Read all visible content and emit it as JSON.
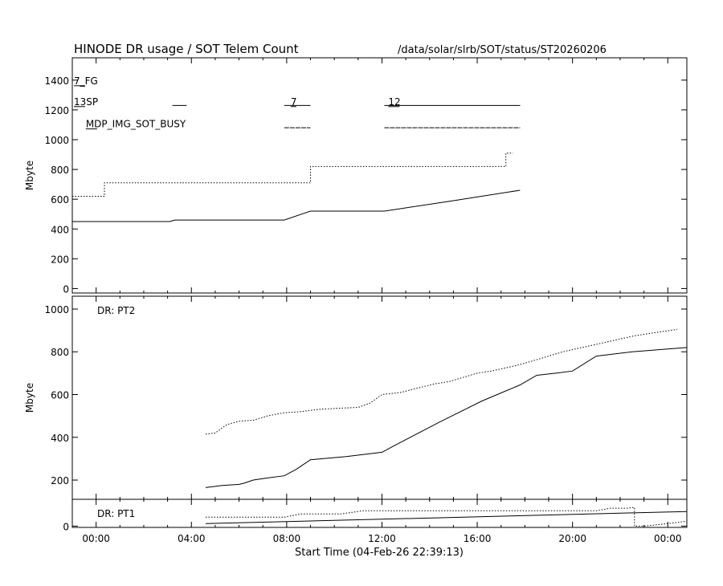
{
  "header": {
    "title": "HINODE DR usage / SOT Telem Count",
    "path": "/data/solar/slrb/SOT/status/ST20260206"
  },
  "x_axis": {
    "label": "Start Time (04-Feb-26 22:39:13)",
    "tick_labels": [
      "00:00",
      "04:00",
      "08:00",
      "12:00",
      "16:00",
      "20:00",
      "00:00"
    ],
    "tick_hours": [
      24,
      28,
      32,
      36,
      40,
      44,
      48
    ]
  },
  "chart_data": [
    {
      "type": "line",
      "panel": "top",
      "title": "",
      "xlabel": "",
      "ylabel": "Mbyte",
      "xlim": [
        23,
        48.8
      ],
      "ylim": [
        -30,
        1550
      ],
      "yticks": [
        0,
        200,
        400,
        600,
        800,
        1000,
        1200,
        1400
      ],
      "labels": [
        {
          "text": "7_FG",
          "hour": 23.0,
          "y": 1400
        },
        {
          "text": "13SP",
          "hour": 23.0,
          "y": 1260
        },
        {
          "text": "7",
          "hour": 32.1,
          "y": 1260
        },
        {
          "text": "12",
          "hour": 36.2,
          "y": 1260
        },
        {
          "text": "MDP_IMG_SOT_BUSY",
          "hour": 23.5,
          "y": 1110
        }
      ],
      "segments": [
        {
          "name": "13SP",
          "level": 1230,
          "x1": 27.2,
          "x2": 27.8
        },
        {
          "name": "7",
          "level": 1230,
          "x1": 31.9,
          "x2": 33.0
        },
        {
          "name": "12",
          "level": 1230,
          "x1": 36.1,
          "x2": 41.8
        },
        {
          "name": "MDP_IMG_SOT_BUSY",
          "level": 1080,
          "x1": 31.9,
          "x2": 33.0
        },
        {
          "name": "MDP_IMG_SOT_BUSY",
          "level": 1080,
          "x1": 36.1,
          "x2": 41.8
        }
      ],
      "series": [
        {
          "style": "solid",
          "x": [
            23.0,
            27.1,
            27.3,
            31.9,
            33.0,
            36.1,
            39.0,
            41.8
          ],
          "y": [
            450,
            450,
            460,
            460,
            520,
            520,
            590,
            660
          ]
        },
        {
          "style": "dotted",
          "x": [
            23.0,
            24.35,
            24.35,
            33.0,
            33.0,
            41.2,
            41.2,
            41.5
          ],
          "y": [
            620,
            620,
            710,
            710,
            820,
            820,
            910,
            910
          ]
        }
      ]
    },
    {
      "type": "line",
      "panel": "middle",
      "title": "DR: PT2",
      "xlabel": "",
      "ylabel": "Mbyte",
      "xlim": [
        23,
        48.8
      ],
      "ylim": [
        110,
        1060
      ],
      "yticks": [
        200,
        400,
        600,
        800,
        1000
      ],
      "series": [
        {
          "style": "solid",
          "x": [
            28.6,
            29.3,
            30.0,
            30.2,
            30.6,
            31.2,
            31.9,
            32.4,
            33.0,
            34.5,
            36.0,
            36.5,
            38.4,
            40.2,
            41.8,
            42.5,
            43.3,
            44.0,
            45.0,
            46.5,
            48.8
          ],
          "y": [
            165,
            175,
            180,
            185,
            200,
            210,
            220,
            250,
            295,
            310,
            330,
            360,
            470,
            570,
            645,
            690,
            700,
            710,
            780,
            800,
            820
          ]
        },
        {
          "style": "dotted",
          "x": [
            28.6,
            29.0,
            29.5,
            30.0,
            30.6,
            31.2,
            31.9,
            32.6,
            33.3,
            34.0,
            35.0,
            35.5,
            36.0,
            36.8,
            37.5,
            38.2,
            38.8,
            39.4,
            40.0,
            40.6,
            41.2,
            41.8,
            42.4,
            43.0,
            43.6,
            44.2,
            44.8,
            45.4,
            46.0,
            46.6,
            47.2,
            47.8,
            48.4
          ],
          "y": [
            415,
            420,
            460,
            475,
            480,
            500,
            515,
            520,
            530,
            535,
            540,
            560,
            600,
            610,
            630,
            650,
            660,
            680,
            700,
            710,
            725,
            740,
            760,
            780,
            800,
            815,
            830,
            845,
            860,
            875,
            885,
            895,
            905
          ]
        }
      ]
    },
    {
      "type": "line",
      "panel": "bottom",
      "title": "DR: PT1",
      "xlabel": "",
      "ylabel": "",
      "xlim": [
        23,
        48.8
      ],
      "ylim": [
        -8,
        165
      ],
      "yticks": [
        0
      ],
      "series": [
        {
          "style": "solid",
          "x": [
            28.6,
            48.8
          ],
          "y": [
            15,
            90
          ]
        },
        {
          "style": "dotted",
          "x": [
            28.6,
            29.5,
            31.9,
            32.6,
            34.3,
            35.2,
            45.0,
            45.6,
            46.3,
            46.6,
            46.6,
            47.0,
            48.0,
            48.8
          ],
          "y": [
            55,
            55,
            55,
            75,
            75,
            95,
            95,
            110,
            110,
            115,
            0,
            0,
            15,
            30
          ]
        }
      ]
    }
  ]
}
